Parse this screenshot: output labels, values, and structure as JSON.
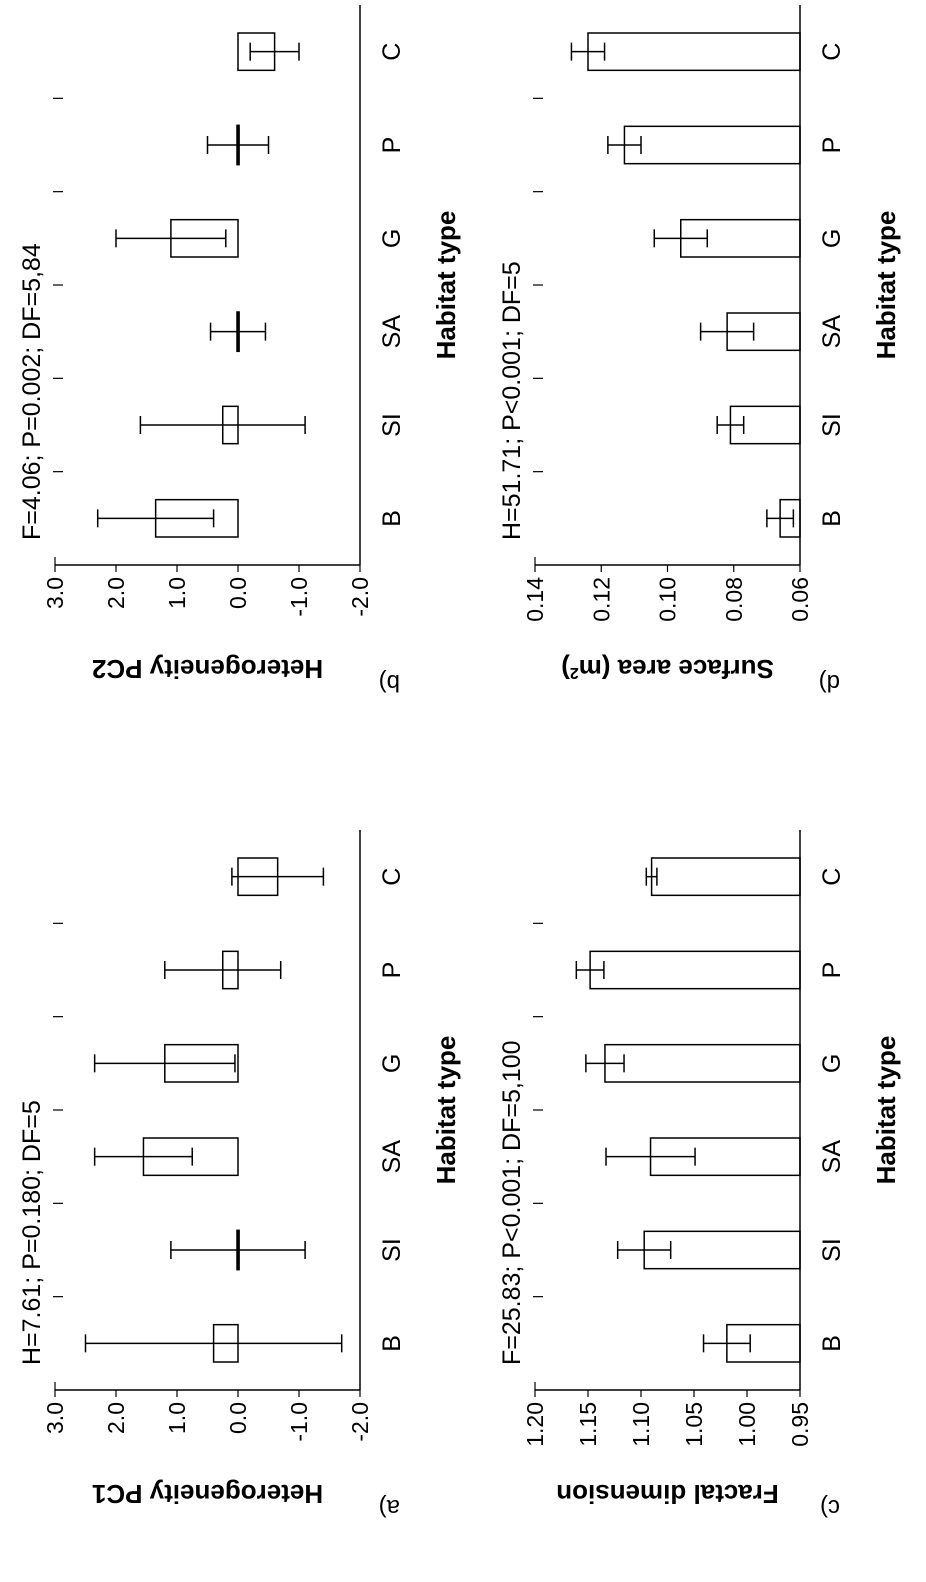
{
  "chart_data": [
    {
      "panel": "a)",
      "type": "bar",
      "categories": [
        "B",
        "SI",
        "SA",
        "G",
        "P",
        "C"
      ],
      "values": [
        0.4,
        0.0,
        1.55,
        1.2,
        0.25,
        -0.65
      ],
      "errors": [
        2.1,
        1.1,
        0.8,
        1.15,
        0.95,
        0.75
      ],
      "ylabel": "Heterogeneity PC1",
      "xlabel": "Habitat type",
      "stat": "H=7.61; P=0.180; DF=5",
      "ylim": [
        -2.0,
        3.0
      ],
      "yticks": [
        "-2.0",
        "-1.0",
        "0.0",
        "1.0",
        "2.0",
        "3.0"
      ],
      "bottom": 0
    },
    {
      "panel": "b)",
      "type": "bar",
      "categories": [
        "B",
        "SI",
        "SA",
        "G",
        "P",
        "C"
      ],
      "values": [
        1.35,
        0.25,
        0.0,
        1.1,
        0.0,
        -0.6
      ],
      "errors": [
        0.95,
        1.35,
        0.45,
        0.9,
        0.5,
        0.4
      ],
      "ylabel": "Heterogeneity PC2",
      "xlabel": "Habitat type",
      "stat": "F=4.06; P=0.002; DF=5,84",
      "ylim": [
        -2.0,
        3.0
      ],
      "yticks": [
        "-2.0",
        "-1.0",
        "0.0",
        "1.0",
        "2.0",
        "3.0"
      ],
      "bottom": 0
    },
    {
      "panel": "c)",
      "type": "bar",
      "categories": [
        "B",
        "SI",
        "SA",
        "G",
        "P",
        "C"
      ],
      "values": [
        1.019,
        1.097,
        1.091,
        1.134,
        1.148,
        1.09
      ],
      "errors": [
        0.022,
        0.025,
        0.042,
        0.018,
        0.013,
        0.005
      ],
      "ylabel": "Fractal dimension",
      "xlabel": "Habitat type",
      "stat": "F=25.83; P<0.001; DF=5,100",
      "ylim": [
        0.95,
        1.2
      ],
      "yticks": [
        "0.95",
        "1.00",
        "1.05",
        "1.10",
        "1.15",
        "1.20"
      ],
      "bottom": 0.95
    },
    {
      "panel": "d)",
      "type": "bar",
      "categories": [
        "B",
        "SI",
        "SA",
        "G",
        "P",
        "C"
      ],
      "values": [
        0.066,
        0.081,
        0.082,
        0.096,
        0.113,
        0.124
      ],
      "errors": [
        0.004,
        0.004,
        0.008,
        0.008,
        0.005,
        0.005
      ],
      "ylabel": "Surface area (m",
      "ylabel_sup": "2",
      "ylabel_end": ")",
      "xlabel": "Habitat type",
      "stat": "H=51.71; P<0.001; DF=5",
      "ylim": [
        0.06,
        0.14
      ],
      "yticks": [
        "0.06",
        "0.08",
        "0.10",
        "0.12",
        "0.14"
      ],
      "bottom": 0.06
    }
  ]
}
